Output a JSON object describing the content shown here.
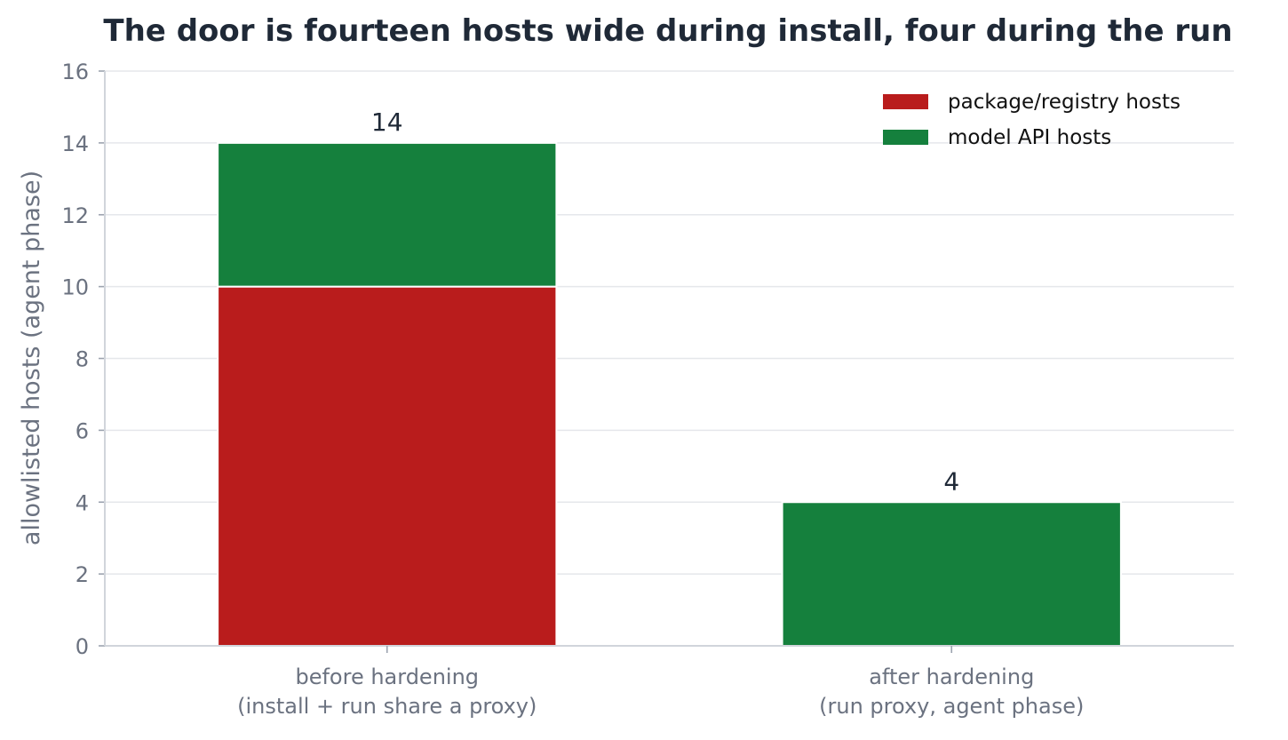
{
  "chart_data": {
    "type": "bar",
    "stacked": true,
    "title": "The door is fourteen hosts wide during install, four during the run",
    "xlabel": "",
    "ylabel": "allowlisted hosts (agent phase)",
    "ylim": [
      0,
      16
    ],
    "yticks": [
      0,
      2,
      4,
      6,
      8,
      10,
      12,
      14,
      16
    ],
    "grid": "horizontal",
    "legend_position": "top-right",
    "categories": [
      [
        "before hardening",
        "(install + run share a proxy)"
      ],
      [
        "after hardening",
        "(run proxy, agent phase)"
      ]
    ],
    "series": [
      {
        "name": "package/registry hosts",
        "color": "#b91c1c",
        "values": [
          10,
          0
        ]
      },
      {
        "name": "model API hosts",
        "color": "#15803d",
        "values": [
          4,
          4
        ]
      }
    ],
    "totals": [
      "14",
      "4"
    ]
  }
}
